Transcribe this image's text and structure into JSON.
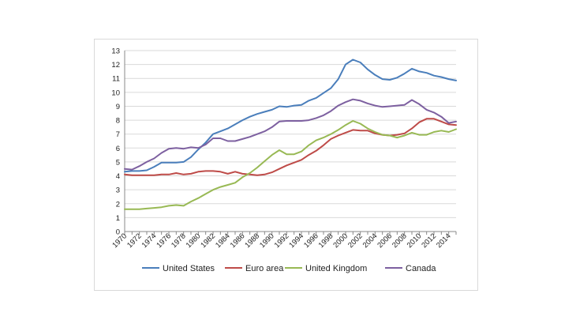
{
  "chart_data": {
    "type": "line",
    "title": "",
    "xlabel": "",
    "ylabel": "",
    "xlim": [
      1970,
      2015
    ],
    "ylim": [
      0,
      13
    ],
    "y_ticks": [
      0,
      1,
      2,
      3,
      4,
      5,
      6,
      7,
      8,
      9,
      10,
      11,
      12,
      13
    ],
    "x_tick_labels": [
      "1970",
      "1972",
      "1974",
      "1976",
      "1978",
      "1980",
      "1982",
      "1984",
      "1986",
      "1988",
      "1990",
      "1992",
      "1994",
      "1996",
      "1998",
      "2000",
      "2002",
      "2004",
      "2006",
      "2008",
      "2010",
      "2012",
      "2014"
    ],
    "grid": true,
    "legend_position": "bottom",
    "x": [
      1970,
      1971,
      1972,
      1973,
      1974,
      1975,
      1976,
      1977,
      1978,
      1979,
      1980,
      1981,
      1982,
      1983,
      1984,
      1985,
      1986,
      1987,
      1988,
      1989,
      1990,
      1991,
      1992,
      1993,
      1994,
      1995,
      1996,
      1997,
      1998,
      1999,
      2000,
      2001,
      2002,
      2003,
      2004,
      2005,
      2006,
      2007,
      2008,
      2009,
      2010,
      2011,
      2012,
      2013,
      2014,
      2015
    ],
    "series": [
      {
        "name": "United States",
        "color": "#4a7ebb",
        "values": [
          4.3,
          4.35,
          4.35,
          4.4,
          4.65,
          4.95,
          4.95,
          4.95,
          5.0,
          5.35,
          5.9,
          6.4,
          7.0,
          7.2,
          7.4,
          7.7,
          8.0,
          8.25,
          8.45,
          8.6,
          8.75,
          9.0,
          8.95,
          9.05,
          9.1,
          9.4,
          9.6,
          9.95,
          10.3,
          10.95,
          12.0,
          12.35,
          12.15,
          11.65,
          11.25,
          10.95,
          10.9,
          11.05,
          11.35,
          11.7,
          11.5,
          11.4,
          11.2,
          11.1,
          10.95,
          10.85
        ]
      },
      {
        "name": "Euro area",
        "color": "#be4b48",
        "values": [
          4.1,
          4.05,
          4.05,
          4.05,
          4.05,
          4.1,
          4.1,
          4.2,
          4.1,
          4.15,
          4.3,
          4.35,
          4.35,
          4.3,
          4.15,
          4.3,
          4.15,
          4.1,
          4.05,
          4.1,
          4.25,
          4.5,
          4.75,
          4.95,
          5.15,
          5.5,
          5.8,
          6.2,
          6.65,
          6.9,
          7.1,
          7.3,
          7.25,
          7.25,
          7.05,
          6.95,
          6.9,
          6.95,
          7.05,
          7.4,
          7.85,
          8.1,
          8.1,
          7.9,
          7.7,
          7.65
        ]
      },
      {
        "name": "United Kingdom",
        "color": "#98b954",
        "values": [
          1.6,
          1.6,
          1.6,
          1.65,
          1.7,
          1.75,
          1.85,
          1.9,
          1.85,
          2.15,
          2.4,
          2.7,
          3.0,
          3.2,
          3.35,
          3.5,
          3.9,
          4.2,
          4.6,
          5.05,
          5.5,
          5.85,
          5.55,
          5.55,
          5.75,
          6.2,
          6.55,
          6.75,
          7.0,
          7.3,
          7.65,
          7.95,
          7.75,
          7.4,
          7.15,
          6.95,
          6.9,
          6.75,
          6.9,
          7.1,
          6.95,
          6.95,
          7.15,
          7.25,
          7.15,
          7.35
        ]
      },
      {
        "name": "Canada",
        "color": "#7d60a0",
        "values": [
          4.5,
          4.45,
          4.7,
          5.0,
          5.25,
          5.65,
          5.95,
          6.0,
          5.95,
          6.05,
          6.0,
          6.25,
          6.7,
          6.7,
          6.5,
          6.5,
          6.65,
          6.8,
          7.0,
          7.2,
          7.5,
          7.9,
          7.95,
          7.95,
          7.95,
          8.0,
          8.15,
          8.35,
          8.65,
          9.05,
          9.3,
          9.5,
          9.4,
          9.2,
          9.05,
          8.95,
          9.0,
          9.05,
          9.1,
          9.45,
          9.15,
          8.75,
          8.55,
          8.25,
          7.8,
          7.9
        ]
      }
    ]
  }
}
